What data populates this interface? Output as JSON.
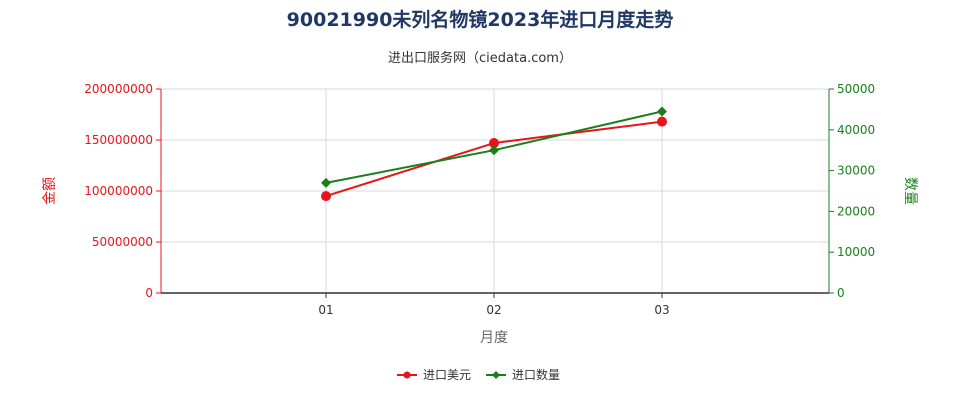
{
  "chart_data": {
    "type": "line",
    "title": "90021990未列名物镜2023年进口月度走势",
    "subtitle": "进出口服务网（ciedata.com）",
    "xlabel": "月度",
    "ylabel_left": "金额",
    "ylabel_right": "数量",
    "categories": [
      "01",
      "02",
      "03"
    ],
    "y_left": {
      "min": 0,
      "max": 200000000,
      "ticks": [
        "0",
        "50000000",
        "100000000",
        "150000000",
        "200000000"
      ]
    },
    "y_right": {
      "min": 0,
      "max": 50000,
      "ticks": [
        "0",
        "10000",
        "20000",
        "30000",
        "40000",
        "50000"
      ]
    },
    "series": [
      {
        "name": "进口美元",
        "axis": "left",
        "color": "#e8141a",
        "marker": "circle",
        "values": [
          95000000,
          147000000,
          168000000
        ]
      },
      {
        "name": "进口数量",
        "axis": "right",
        "color": "#1a7f1a",
        "marker": "diamond",
        "values": [
          27000,
          35000,
          44500
        ]
      }
    ],
    "grid": true,
    "legend_position": "bottom"
  }
}
